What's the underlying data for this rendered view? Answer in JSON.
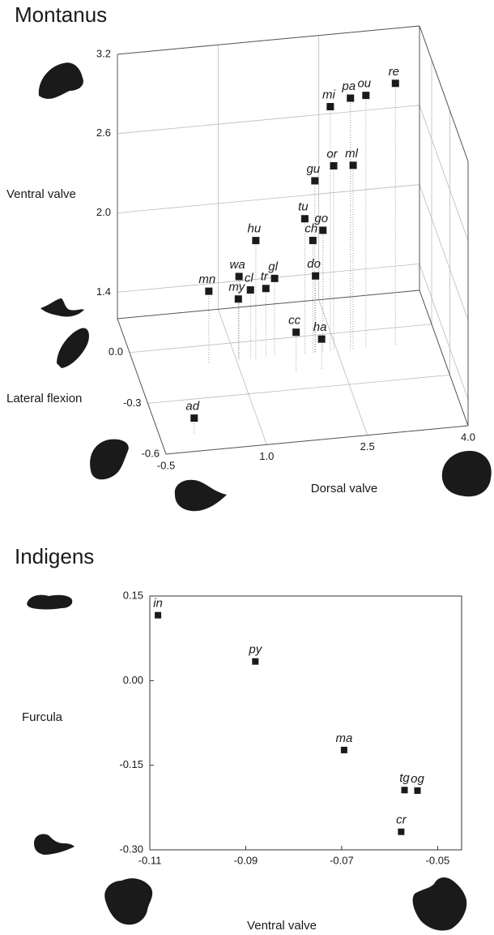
{
  "chart_data": [
    {
      "type": "scatter3d",
      "title": "Montanus",
      "xlabel": "Dorsal valve",
      "ylabel": "Lateral flexion",
      "zlabel": "Ventral valve",
      "xlim": [
        -0.5,
        4.0
      ],
      "ylim": [
        -0.6,
        0.2
      ],
      "zlim": [
        1.2,
        3.2
      ],
      "xticks": [
        -0.5,
        {
          "value": 1,
          "label": "1.0"
        },
        2.5,
        {
          "value": 4,
          "label": "4.0"
        }
      ],
      "yticks": [
        {
          "value": 0,
          "label": "0.0"
        },
        -0.3,
        -0.6
      ],
      "zticks": [
        1.4,
        {
          "value": 2,
          "label": "2.0"
        },
        2.6,
        3.2
      ],
      "color": "#1a1a1a",
      "grid": true,
      "point_labels": [
        "re",
        "pa",
        "ou",
        "mi",
        "or",
        "ml",
        "gu",
        "tu",
        "go",
        "ch",
        "hu",
        "do",
        "gl",
        "wa",
        "cl",
        "tr",
        "mn",
        "my",
        "cc",
        "ha",
        "ad"
      ],
      "x": [
        3.37,
        2.7,
        2.93,
        2.4,
        2.45,
        2.74,
        2.17,
        2.02,
        2.29,
        2.14,
        1.29,
        2.18,
        1.57,
        1.04,
        1.21,
        1.44,
        0.59,
        1.03,
        1.8,
        2.18,
        0.01
      ],
      "y": [
        -0.1,
        -0.1,
        -0.1,
        -0.1,
        -0.1,
        -0.1,
        -0.1,
        -0.1,
        -0.1,
        -0.1,
        -0.1,
        -0.1,
        -0.1,
        -0.1,
        -0.1,
        -0.1,
        -0.1,
        -0.1,
        -0.2,
        -0.2,
        -0.5
      ],
      "z": [
        3.18,
        3.1,
        3.11,
        3.05,
        2.6,
        2.59,
        2.5,
        2.22,
        2.12,
        2.05,
        2.09,
        1.78,
        1.79,
        1.83,
        1.72,
        1.72,
        1.74,
        1.66,
        1.5,
        1.43,
        1.32
      ]
    },
    {
      "type": "scatter",
      "title": "Indigens",
      "xlabel": "Ventral valve",
      "ylabel": "Furcula",
      "xlim": [
        -0.11,
        -0.045
      ],
      "ylim": [
        -0.3,
        0.15
      ],
      "xticks": [
        -0.11,
        -0.09,
        -0.07,
        -0.05
      ],
      "yticks": [
        0.15,
        {
          "value": 0,
          "label": "0.00"
        },
        -0.15,
        {
          "value": -0.3,
          "label": "-0.30"
        }
      ],
      "color": "#1a1a1a",
      "point_labels": [
        "in",
        "py",
        "ma",
        "tg",
        "og",
        "cr"
      ],
      "x": [
        -0.1083,
        -0.088,
        -0.0695,
        -0.0569,
        -0.0542,
        -0.0576
      ],
      "y": [
        0.116,
        0.034,
        -0.123,
        -0.194,
        -0.195,
        -0.268
      ]
    }
  ]
}
